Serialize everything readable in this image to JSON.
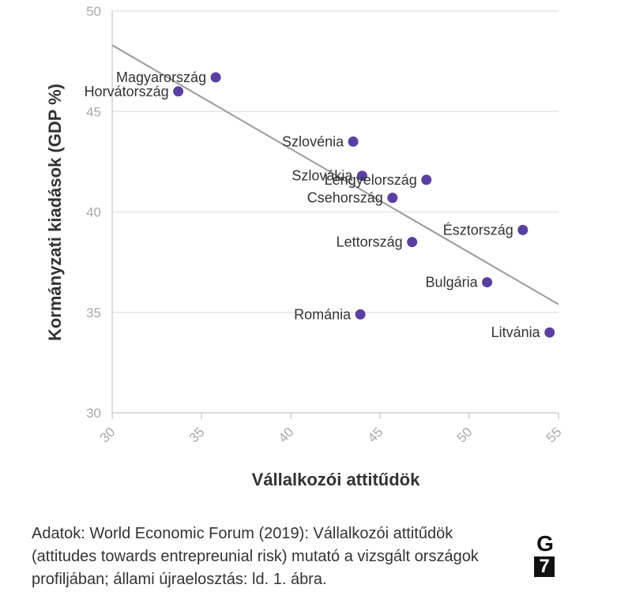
{
  "chart_data": {
    "type": "scatter",
    "xlabel": "Vállalkozói attitűdök",
    "ylabel": "Kormányzati kiadások (GDP %)",
    "xlim": [
      30,
      55
    ],
    "ylim": [
      30,
      50
    ],
    "xticks": [
      30,
      35,
      40,
      45,
      50,
      55
    ],
    "yticks": [
      30,
      35,
      40,
      45,
      50
    ],
    "grid": true,
    "point_color": "#5b3fa0",
    "trend_color": "#9a9a9a",
    "points": [
      {
        "label": "Magyarország",
        "x": 35.8,
        "y": 46.7,
        "label_side": "left"
      },
      {
        "label": "Horvátország",
        "x": 33.7,
        "y": 46.0,
        "label_side": "left"
      },
      {
        "label": "Szlovénia",
        "x": 43.5,
        "y": 43.5,
        "label_side": "left"
      },
      {
        "label": "Szlovákia",
        "x": 44.0,
        "y": 41.8,
        "label_side": "left"
      },
      {
        "label": "Lengyelország",
        "x": 47.6,
        "y": 41.6,
        "label_side": "left"
      },
      {
        "label": "Csehország",
        "x": 45.7,
        "y": 40.7,
        "label_side": "left"
      },
      {
        "label": "Észtország",
        "x": 53.0,
        "y": 39.1,
        "label_side": "left"
      },
      {
        "label": "Lettország",
        "x": 46.8,
        "y": 38.5,
        "label_side": "left"
      },
      {
        "label": "Bulgária",
        "x": 51.0,
        "y": 36.5,
        "label_side": "left"
      },
      {
        "label": "Románia",
        "x": 43.9,
        "y": 34.9,
        "label_side": "left"
      },
      {
        "label": "Litvánia",
        "x": 54.5,
        "y": 34.0,
        "label_side": "left"
      }
    ],
    "trendline": {
      "x": [
        30,
        55
      ],
      "y": [
        48.3,
        35.4
      ]
    }
  },
  "caption": "Adatok: World Economic Forum (2019): Vállalkozói attitűdök (attitudes towards entrepreunial risk) mutató a vizsgált országok profiljában; állami újraelosztás: ld. 1. ábra.",
  "logo": {
    "top": "G",
    "bottom": "7"
  }
}
